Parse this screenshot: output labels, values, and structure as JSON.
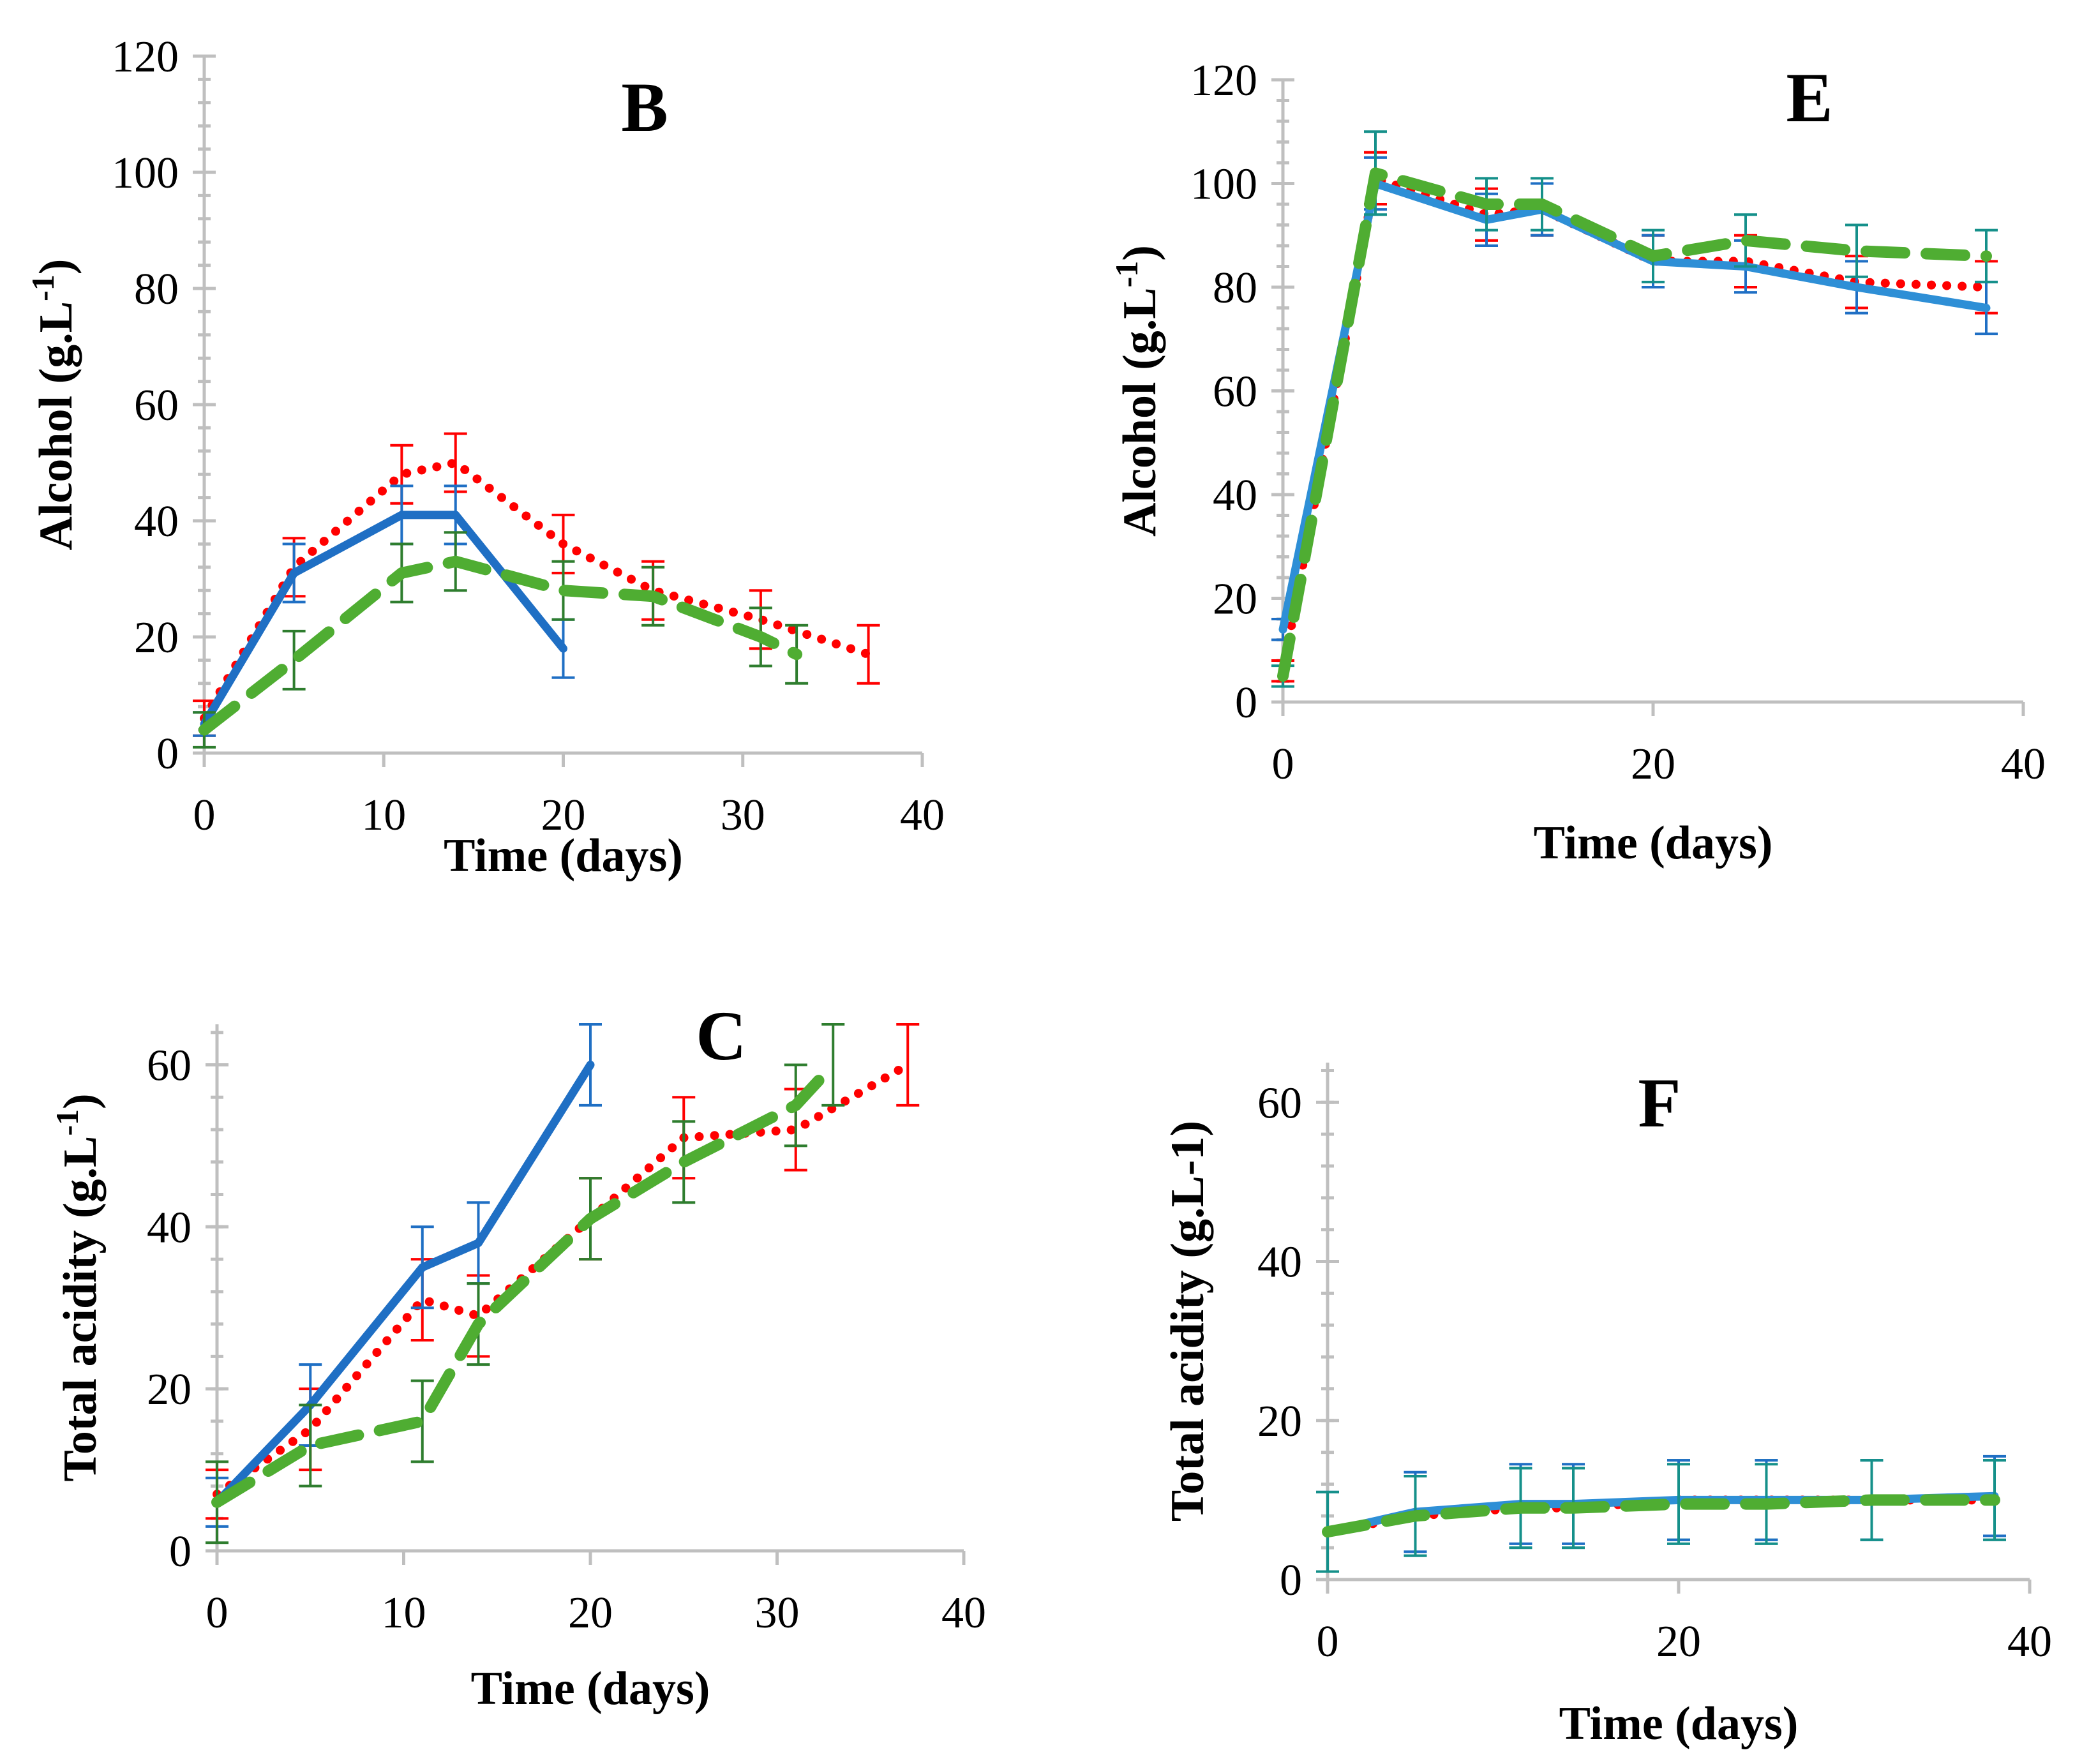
{
  "chart_data": [
    {
      "id": "B",
      "type": "line",
      "panel_label": "B",
      "xlabel": "Time (days)",
      "ylabel": "Alcohol (g.L-1)",
      "ylabel_base": "Alcohol (g.L",
      "ylabel_sup": "-1",
      "ylabel_end": ")",
      "xlim": [
        0,
        40
      ],
      "ylim": [
        0,
        120
      ],
      "x_ticks": [
        0,
        10,
        20,
        30,
        40
      ],
      "y_ticks": [
        0,
        20,
        40,
        60,
        80,
        100,
        120
      ],
      "x_tick_labels": [
        "0",
        "10",
        "20",
        "30",
        "40"
      ],
      "y_tick_labels": [
        "0",
        "20",
        "40",
        "60",
        "80",
        "100",
        "120"
      ],
      "minor_y": true,
      "series": [
        {
          "name": "dotted-red",
          "style": "dotted",
          "color": "#ff0000",
          "bar_color": "#ff0000",
          "x": [
            0,
            5,
            11,
            14,
            20,
            25,
            31,
            37
          ],
          "y": [
            6,
            32,
            48,
            50,
            36,
            28,
            23,
            17
          ],
          "err": [
            3,
            5,
            5,
            5,
            5,
            5,
            5,
            5
          ]
        },
        {
          "name": "solid-blue",
          "style": "solid",
          "color": "#1f6fc4",
          "bar_color": "#1f6fc4",
          "x": [
            0,
            5,
            11,
            14,
            20
          ],
          "y": [
            5,
            31,
            41,
            41,
            18
          ],
          "err": [
            2,
            5,
            5,
            5,
            5
          ]
        },
        {
          "name": "dashed-green",
          "style": "dashed",
          "color": "#4fad32",
          "bar_color": "#2e7d2e",
          "x": [
            0,
            5,
            11,
            14,
            20,
            25,
            31,
            33
          ],
          "y": [
            4,
            16,
            31,
            33,
            28,
            27,
            20,
            17
          ],
          "err": [
            3,
            5,
            5,
            5,
            5,
            5,
            5,
            5
          ]
        }
      ]
    },
    {
      "id": "E",
      "type": "line",
      "panel_label": "E",
      "xlabel": "Time (days)",
      "ylabel": "Alcohol (g.L-1)",
      "ylabel_base": "Alcohol (g.L",
      "ylabel_sup": "-1",
      "ylabel_end": ")",
      "xlim": [
        0,
        40
      ],
      "ylim": [
        0,
        120
      ],
      "x_ticks": [
        0,
        20,
        40
      ],
      "y_ticks": [
        0,
        20,
        40,
        60,
        80,
        100,
        120
      ],
      "x_tick_labels": [
        "0",
        "20",
        "40"
      ],
      "y_tick_labels": [
        "0",
        "20",
        "40",
        "60",
        "80",
        "100",
        "120"
      ],
      "minor_y": true,
      "series": [
        {
          "name": "dotted-red",
          "style": "dotted",
          "color": "#ff0000",
          "bar_color": "#ff0000",
          "x": [
            0,
            5,
            11,
            14,
            20,
            25,
            31,
            38
          ],
          "y": [
            6,
            101,
            94,
            95,
            85,
            85,
            81,
            80
          ],
          "err": [
            2,
            5,
            5,
            5,
            5,
            5,
            5,
            5
          ]
        },
        {
          "name": "solid-blue",
          "style": "solid",
          "color": "#2e8fd6",
          "bar_color": "#1f6fc4",
          "x": [
            0,
            5,
            11,
            14,
            20,
            25,
            31,
            38
          ],
          "y": [
            14,
            100,
            93,
            95,
            85,
            84,
            80,
            76
          ],
          "err": [
            2,
            5,
            5,
            5,
            5,
            5,
            5,
            5
          ]
        },
        {
          "name": "dashed-green",
          "style": "dashed",
          "color": "#4fad32",
          "bar_color": "#15908a",
          "x": [
            0,
            5,
            11,
            14,
            20,
            25,
            31,
            38
          ],
          "y": [
            5,
            102,
            96,
            96,
            86,
            89,
            87,
            86
          ],
          "err": [
            2,
            8,
            5,
            5,
            5,
            5,
            5,
            5
          ]
        }
      ]
    },
    {
      "id": "C",
      "type": "line",
      "panel_label": "C",
      "xlabel": "Time (days)",
      "ylabel": "Total acidity (g.L-1)",
      "ylabel_base": "Total acidity (g.L",
      "ylabel_sup": "-1",
      "ylabel_end": ")",
      "xlim": [
        0,
        40
      ],
      "ylim": [
        0,
        65
      ],
      "x_ticks": [
        0,
        10,
        20,
        30,
        40
      ],
      "y_ticks": [
        0,
        20,
        40,
        60
      ],
      "x_tick_labels": [
        "0",
        "10",
        "20",
        "30",
        "40"
      ],
      "y_tick_labels": [
        "0",
        "20",
        "40",
        "60"
      ],
      "minor_y": true,
      "series": [
        {
          "name": "dotted-red",
          "style": "dotted",
          "color": "#ff0000",
          "bar_color": "#ff0000",
          "x": [
            0,
            5,
            11,
            14,
            20,
            25,
            31,
            37
          ],
          "y": [
            7,
            15,
            31,
            29,
            41,
            51,
            52,
            60
          ],
          "err": [
            3,
            5,
            5,
            5,
            5,
            5,
            5,
            5
          ]
        },
        {
          "name": "solid-blue",
          "style": "solid",
          "color": "#1f6fc4",
          "bar_color": "#1f6fc4",
          "x": [
            0,
            5,
            11,
            14,
            20
          ],
          "y": [
            6,
            18,
            35,
            38,
            60
          ],
          "err": [
            3,
            5,
            5,
            5,
            5
          ]
        },
        {
          "name": "dashed-green",
          "style": "dashed",
          "color": "#4fad32",
          "bar_color": "#2e7d2e",
          "x": [
            0,
            5,
            11,
            14,
            20,
            25,
            31,
            33
          ],
          "y": [
            6,
            13,
            16,
            28,
            41,
            48,
            55,
            60
          ],
          "err": [
            5,
            5,
            5,
            5,
            5,
            5,
            5,
            5
          ]
        }
      ]
    },
    {
      "id": "F",
      "type": "line",
      "panel_label": "F",
      "xlabel": "Time (days)",
      "ylabel": "Total acidity (g.L-1)",
      "ylabel_base": "Total acidity (g.L-1)",
      "ylabel_sup": "",
      "ylabel_end": "",
      "xlim": [
        0,
        40
      ],
      "ylim": [
        0,
        65
      ],
      "x_ticks": [
        0,
        20,
        40
      ],
      "y_ticks": [
        0,
        20,
        40,
        60
      ],
      "x_tick_labels": [
        "0",
        "20",
        "40"
      ],
      "y_tick_labels": [
        "0",
        "20",
        "40",
        "60"
      ],
      "minor_y": true,
      "series": [
        {
          "name": "dotted-red",
          "style": "dotted",
          "color": "#ff0000",
          "bar_color": "#15908a",
          "x": [
            0,
            5,
            11,
            14,
            20,
            25,
            31,
            38
          ],
          "y": [
            6,
            8,
            9,
            9,
            10,
            10,
            10,
            10
          ],
          "err": [
            5,
            5,
            5,
            5,
            5,
            5,
            5,
            5
          ]
        },
        {
          "name": "solid-blue",
          "style": "solid",
          "color": "#2e8fd6",
          "bar_color": "#1f6fc4",
          "x": [
            0,
            5,
            11,
            14,
            20,
            25,
            31,
            38
          ],
          "y": [
            6,
            8.5,
            9.5,
            9.5,
            10,
            10,
            10,
            10.5
          ],
          "err": [
            5,
            5,
            5,
            5,
            5,
            5,
            5,
            5
          ]
        },
        {
          "name": "dashed-green",
          "style": "dashed",
          "color": "#4fad32",
          "bar_color": "#15908a",
          "x": [
            0,
            5,
            11,
            14,
            20,
            25,
            31,
            38
          ],
          "y": [
            6,
            8,
            9,
            9,
            9.5,
            9.5,
            10,
            10
          ],
          "err": [
            5,
            5,
            5,
            5,
            5,
            5,
            5,
            5
          ]
        }
      ]
    }
  ]
}
